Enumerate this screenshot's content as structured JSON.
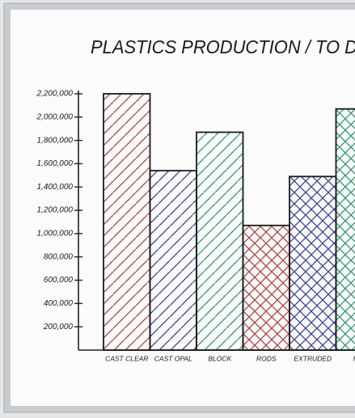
{
  "chart_data": {
    "type": "bar",
    "title": "PLASTICS PRODUCTION / TO D",
    "categories": [
      "CAST CLEAR",
      "CAST OPAL",
      "BLOCK",
      "RODS",
      "EXTRUDED",
      "HIG"
    ],
    "values": [
      2200000,
      1540000,
      1870000,
      1070000,
      1490000,
      2070000
    ],
    "colors": [
      "#b5403f",
      "#3b3f9c",
      "#2a9a6c",
      "#b5403f",
      "#3b3f9c",
      "#2a9a6c"
    ],
    "patterns": [
      "diagonal",
      "diagonal",
      "diagonal",
      "cross",
      "cross",
      "cross"
    ],
    "ylim": [
      0,
      2200000
    ],
    "yticks": [
      {
        "value": 200000,
        "label": "200,000"
      },
      {
        "value": 400000,
        "label": "400,000"
      },
      {
        "value": 600000,
        "label": "600,000"
      },
      {
        "value": 800000,
        "label": "800,000"
      },
      {
        "value": 1000000,
        "label": "1,000,000"
      },
      {
        "value": 1200000,
        "label": "1,200,000"
      },
      {
        "value": 1400000,
        "label": "1,400,000"
      },
      {
        "value": 1600000,
        "label": "1,600,000"
      },
      {
        "value": 1800000,
        "label": "1,800,000"
      },
      {
        "value": 2000000,
        "label": "2,000,000"
      },
      {
        "value": 2200000,
        "label": "2,200,000"
      }
    ]
  }
}
